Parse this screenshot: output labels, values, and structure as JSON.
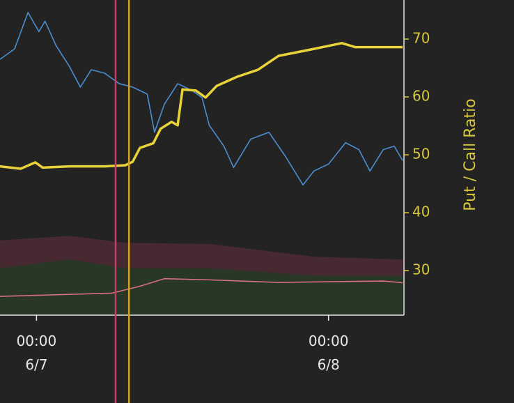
{
  "chart_data": {
    "type": "line",
    "y2label": "Put / Call Ratio",
    "xlim": [
      -3,
      30.2
    ],
    "xticks": [
      {
        "value": 0,
        "label": "00:00\n6/7"
      },
      {
        "value": 24,
        "label": "00:00\n6/8"
      }
    ],
    "y2lim": [
      22.3,
      76.75
    ],
    "y2ticks": [
      30,
      40,
      50,
      60,
      70
    ],
    "axis_color": "#d8c840",
    "series": [
      {
        "color": "#4a8fd0",
        "axis": "y2",
        "x": [
          -3.0,
          -1.8,
          -0.7,
          0.2,
          0.7,
          1.6,
          2.7,
          3.6,
          4.5,
          5.6,
          6.8,
          7.9,
          9.1,
          9.7,
          10.5,
          11.6,
          12.8,
          13.6,
          14.2,
          15.4,
          16.2,
          17.6,
          19.1,
          20.5,
          21.9,
          22.8,
          24.0,
          25.4,
          26.5,
          27.4,
          28.5,
          29.4,
          30.1
        ],
        "values": [
          66.5,
          68.3,
          74.6,
          71.3,
          73.1,
          68.9,
          65.3,
          61.7,
          64.7,
          64.1,
          62.3,
          61.7,
          60.5,
          53.9,
          58.7,
          62.3,
          61.1,
          59.9,
          55.1,
          51.5,
          47.8,
          52.7,
          53.9,
          49.6,
          44.8,
          47.2,
          48.4,
          52.1,
          50.9,
          47.2,
          50.9,
          51.5,
          49.0
        ]
      },
      {
        "color": "#e8d43a",
        "axis": "y2",
        "x": [
          -3.0,
          -1.3,
          -0.1,
          0.5,
          2.7,
          5.6,
          7.3,
          7.9,
          8.5,
          9.6,
          10.2,
          11.1,
          11.6,
          12.0,
          13.1,
          13.9,
          14.8,
          16.5,
          18.2,
          19.9,
          22.8,
          25.1,
          26.2,
          28.0,
          30.1
        ],
        "values": [
          48.0,
          47.6,
          48.7,
          47.8,
          48.0,
          48.0,
          48.2,
          48.8,
          51.2,
          52.0,
          54.5,
          55.7,
          55.1,
          61.3,
          61.1,
          59.9,
          61.9,
          63.5,
          64.7,
          67.1,
          68.3,
          69.3,
          68.6,
          68.6,
          68.6
        ]
      },
      {
        "color": "#d87080",
        "axis": "y2",
        "x": [
          -3.0,
          6.2,
          8.5,
          10.5,
          14.2,
          19.9,
          28.5,
          30.1
        ],
        "values": [
          25.55,
          26.1,
          27.3,
          28.6,
          28.4,
          27.95,
          28.2,
          27.9
        ]
      }
    ],
    "areas": [
      {
        "color": "#4a2a33",
        "x": [
          -3,
          2.7,
          7.3,
          14.2,
          22.8,
          30.1
        ],
        "upper": [
          35.2,
          36.0,
          34.8,
          34.6,
          32.4,
          31.9
        ],
        "lower": [
          30.4,
          31.9,
          30.4,
          30.4,
          29.1,
          29.1
        ]
      },
      {
        "color": "#2a3a28",
        "x": [
          -3,
          2.7,
          7.3,
          14.2,
          22.8,
          30.1
        ],
        "upper": [
          30.4,
          31.9,
          30.4,
          30.4,
          29.1,
          29.1
        ]
      }
    ],
    "vlines": [
      {
        "x": 6.5,
        "color": "#c0406a"
      },
      {
        "x": 7.6,
        "color": "#d4a020"
      }
    ]
  }
}
